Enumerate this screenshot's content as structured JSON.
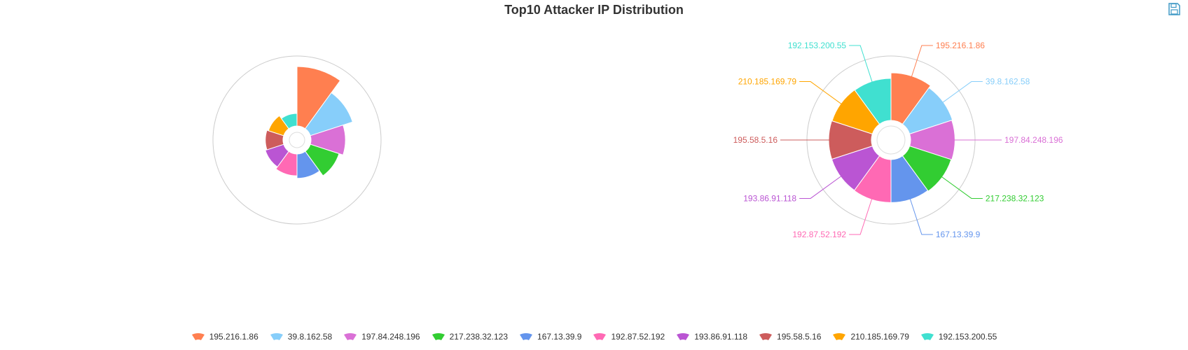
{
  "toolbar": {
    "save_icon": "save-disk-icon"
  },
  "chart_data": {
    "type": "pie",
    "variant": "nightingale-rose",
    "title": "Top10 Attacker IP Distribution",
    "legend_position": "bottom-center",
    "categories": [
      "195.216.1.86",
      "39.8.162.58",
      "197.84.248.196",
      "217.238.32.123",
      "167.13.39.9",
      "192.87.52.192",
      "193.86.91.118",
      "195.58.5.16",
      "210.185.169.79",
      "192.153.200.55"
    ],
    "colors": [
      "#ff7f50",
      "#87cefa",
      "#da70d6",
      "#32cd32",
      "#6495ed",
      "#ff69b4",
      "#ba55d3",
      "#cd5c5c",
      "#ffa500",
      "#40e0d0"
    ],
    "charts": [
      {
        "rose_type": "radius",
        "values": [
          100,
          82,
          70,
          65,
          58,
          55,
          52,
          50,
          48,
          44
        ]
      },
      {
        "rose_type": "area",
        "labels_shown": true,
        "values": [
          100,
          92,
          90,
          88,
          86,
          86,
          85,
          85,
          84,
          83
        ]
      }
    ]
  }
}
